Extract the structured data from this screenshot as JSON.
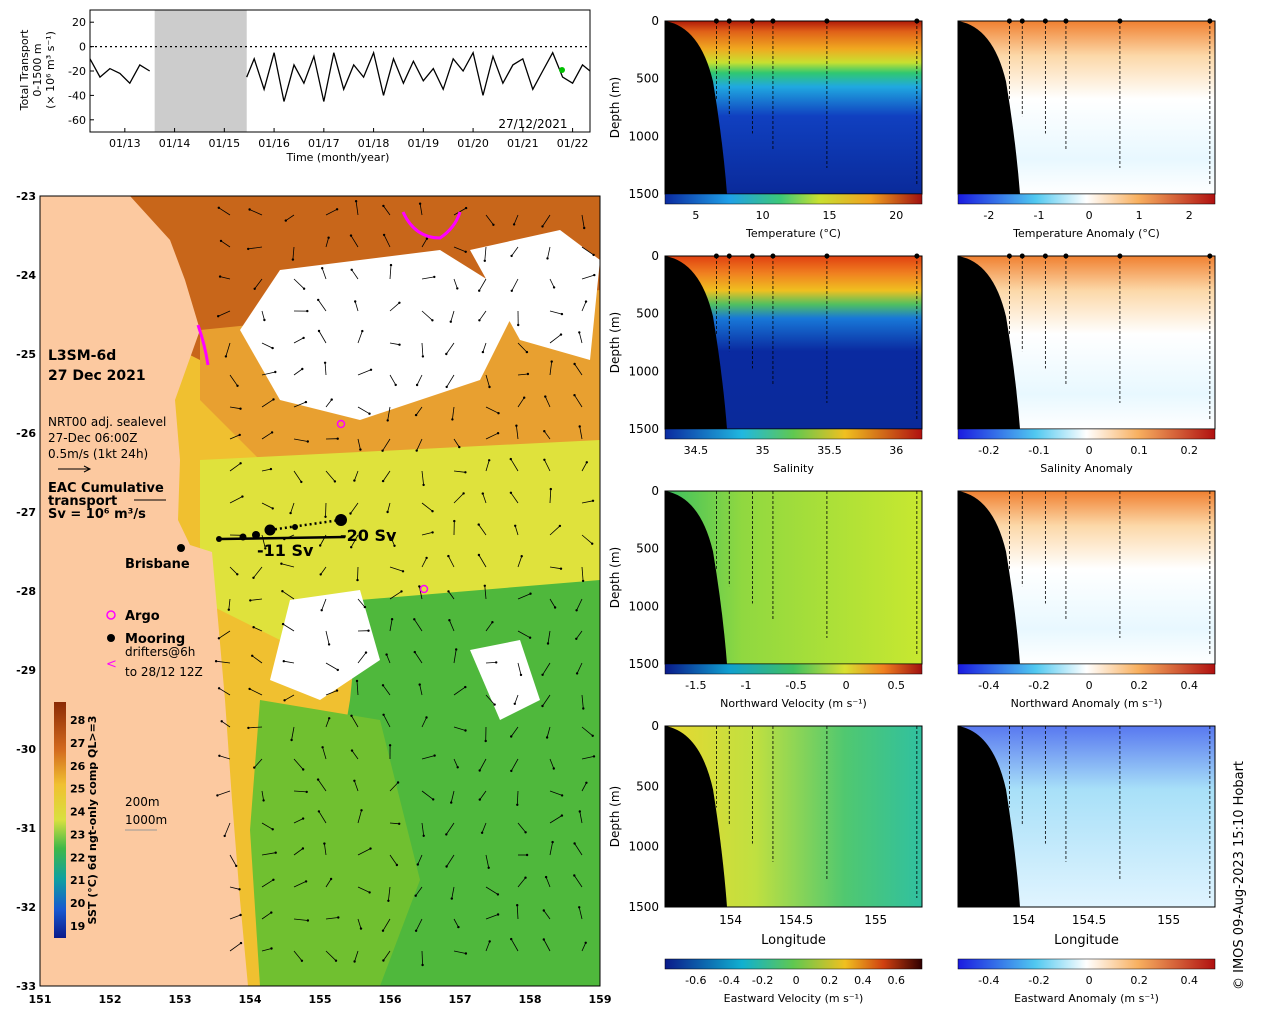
{
  "chart_data": [
    {
      "type": "line",
      "title": "",
      "ylabel_lines": [
        "Total Transport",
        "0-1500 m",
        "(× 10⁶ m³ s⁻¹)"
      ],
      "xlabel": "Time (month/year)",
      "x_ticks": [
        "01/13",
        "01/14",
        "01/15",
        "01/16",
        "01/17",
        "01/18",
        "01/19",
        "01/20",
        "01/21",
        "01/22"
      ],
      "y_ticks": [
        20,
        0,
        -20,
        -40,
        -60
      ],
      "ylim": [
        -70,
        30
      ],
      "xlim": [
        2012.3,
        2022.35
      ],
      "gap_shading": [
        2013.6,
        2015.45
      ],
      "date_label": "27/12/2021",
      "series": [
        {
          "x": [
            2012.3,
            2012.5,
            2012.7,
            2012.9,
            2013.1,
            2013.3,
            2013.5,
            2015.45,
            2015.6,
            2015.8,
            2016.0,
            2016.2,
            2016.4,
            2016.6,
            2016.8,
            2017.0,
            2017.2,
            2017.4,
            2017.6,
            2017.8,
            2018.0,
            2018.2,
            2018.4,
            2018.6,
            2018.8,
            2019.0,
            2019.2,
            2019.4,
            2019.6,
            2019.8,
            2020.0,
            2020.2,
            2020.4,
            2020.6,
            2020.8,
            2021.0,
            2021.2,
            2021.4,
            2021.6,
            2021.8,
            2022.0,
            2022.2,
            2022.35
          ],
          "y": [
            -10,
            -25,
            -18,
            -22,
            -30,
            -15,
            -20,
            -25,
            -10,
            -35,
            -5,
            -45,
            -15,
            -30,
            -8,
            -45,
            -5,
            -35,
            -15,
            -25,
            -5,
            -40,
            -10,
            -30,
            -12,
            -28,
            -18,
            -35,
            -10,
            -20,
            -5,
            -40,
            -8,
            -30,
            -15,
            -10,
            -35,
            -20,
            -5,
            -25,
            -30,
            -15,
            -20
          ]
        }
      ]
    },
    {
      "type": "heatmap",
      "map_label_lines": [
        "L3SM-6d",
        "27 Dec 2021"
      ],
      "sealevel_lines": [
        "NRT00 adj. sealevel",
        "27-Dec 06:00Z",
        "0.5m/s (1kt 24h)"
      ],
      "transport_lines": [
        "EAC Cumulative",
        "transport"
      ],
      "sv_line": "Sv = 10⁶ m³/s",
      "city_label": "Brisbane",
      "transport_labels": [
        "-11 Sv",
        "-20 Sv"
      ],
      "legend_items": [
        {
          "marker": "o",
          "label": "Argo",
          "color": "#ff00ff"
        },
        {
          "marker": "dot",
          "label": "Mooring",
          "color": "#000000"
        },
        {
          "marker": "<",
          "label": "drifters@6h",
          "color": "#ff00ff"
        }
      ],
      "drifter_label_2": "to 28/12 12Z",
      "colorbar_label": "SST (°C) 6d ngt-only comp QL>=3",
      "colorbar_ticks": [
        "28",
        "27",
        "26",
        "25",
        "24",
        "23",
        "22",
        "21",
        "20",
        "19"
      ],
      "bathy_labels": [
        "200m",
        "1000m"
      ],
      "x_ticks": [
        "151",
        "152",
        "153",
        "154",
        "155",
        "156",
        "157",
        "158",
        "159"
      ],
      "y_ticks": [
        "-23",
        "-24",
        "-25",
        "-26",
        "-27",
        "-28",
        "-29",
        "-30",
        "-31",
        "-32",
        "-33"
      ],
      "xlim": [
        151,
        159
      ],
      "ylim": [
        -33,
        -23
      ]
    },
    {
      "type": "heatmap",
      "section_panels": [
        {
          "row": 0,
          "col": 0,
          "cbar_label": "Temperature (°C)",
          "cbar_ticks": [
            "5",
            "10",
            "15",
            "20"
          ],
          "palette": "temperature"
        },
        {
          "row": 0,
          "col": 1,
          "cbar_label": "Temperature Anomaly (°C)",
          "cbar_ticks": [
            "-2",
            "-1",
            "0",
            "1",
            "2"
          ],
          "palette": "anomaly"
        },
        {
          "row": 1,
          "col": 0,
          "cbar_label": "Salinity",
          "cbar_ticks": [
            "34.5",
            "35",
            "35.5",
            "36"
          ],
          "palette": "salinity"
        },
        {
          "row": 1,
          "col": 1,
          "cbar_label": "Salinity Anomaly",
          "cbar_ticks": [
            "-0.2",
            "-0.1",
            "0",
            "0.1",
            "0.2"
          ],
          "palette": "anomaly"
        },
        {
          "row": 2,
          "col": 0,
          "cbar_label": "Northward Velocity (m s⁻¹)",
          "cbar_ticks": [
            "-1.5",
            "-1",
            "-0.5",
            "0",
            "0.5"
          ],
          "palette": "northward"
        },
        {
          "row": 2,
          "col": 1,
          "cbar_label": "Northward Anomaly (m s⁻¹)",
          "cbar_ticks": [
            "-0.4",
            "-0.2",
            "0",
            "0.2",
            "0.4"
          ],
          "palette": "anomaly"
        },
        {
          "row": 3,
          "col": 0,
          "cbar_label": "Eastward Velocity (m s⁻¹)",
          "cbar_ticks": [
            "-0.6",
            "-0.4",
            "-0.2",
            "0",
            "0.2",
            "0.4",
            "0.6"
          ],
          "palette": "eastward"
        },
        {
          "row": 3,
          "col": 1,
          "cbar_label": "Eastward Anomaly (m s⁻¹)",
          "cbar_ticks": [
            "-0.4",
            "-0.2",
            "0",
            "0.2",
            "0.4"
          ],
          "palette": "anomaly"
        }
      ],
      "depth_label": "Depth (m)",
      "depth_ticks": [
        "0",
        "500",
        "1000",
        "1500"
      ],
      "longitude_label": "Longitude",
      "longitude_ticks": [
        "154",
        "154.5",
        "155"
      ]
    }
  ],
  "copyright": "© IMOS 09-Aug-2023 15:10 Hobart",
  "colors": {
    "land": "#fcc9a0",
    "sst_warm": "#c8661a",
    "sst_mid": "#e8b43a",
    "sst_yellow": "#dfe23c",
    "sst_green": "#4fb83c",
    "argo": "#ff00ff",
    "mooring": "#000000"
  }
}
